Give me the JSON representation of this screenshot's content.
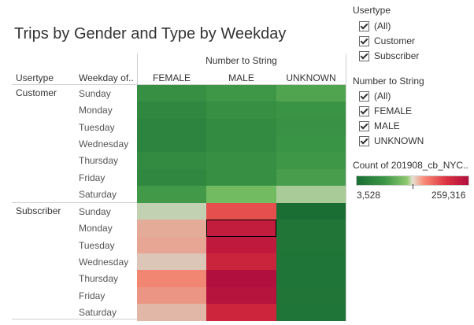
{
  "title": "Trips by Gender and Type by Weekday",
  "header_group": "Number to String",
  "row_headers": [
    "Usertype",
    "Weekday of.."
  ],
  "chart_data": {
    "type": "heatmap",
    "title": "Trips by Gender and Type by Weekday",
    "columns": [
      "FEMALE",
      "MALE",
      "UNKNOWN"
    ],
    "groups": [
      {
        "usertype": "Customer",
        "rows": [
          {
            "weekday": "Sunday",
            "values": [
              9000,
              12000,
              16000
            ]
          },
          {
            "weekday": "Monday",
            "values": [
              7000,
              9000,
              11000
            ]
          },
          {
            "weekday": "Tuesday",
            "values": [
              6000,
              8000,
              10000
            ]
          },
          {
            "weekday": "Wednesday",
            "values": [
              6000,
              8000,
              11000
            ]
          },
          {
            "weekday": "Thursday",
            "values": [
              8000,
              9000,
              12000
            ]
          },
          {
            "weekday": "Friday",
            "values": [
              7000,
              9000,
              14000
            ]
          },
          {
            "weekday": "Saturday",
            "values": [
              13000,
              25000,
              35000
            ]
          }
        ]
      },
      {
        "usertype": "Subscriber",
        "rows": [
          {
            "weekday": "Sunday",
            "values": [
              40000,
              120000,
              3528
            ]
          },
          {
            "weekday": "Monday",
            "values": [
              60000,
              210000,
              3800
            ]
          },
          {
            "weekday": "Tuesday",
            "values": [
              62000,
              220000,
              3800
            ]
          },
          {
            "weekday": "Wednesday",
            "values": [
              50000,
              190000,
              3700
            ]
          },
          {
            "weekday": "Thursday",
            "values": [
              75000,
              259316,
              3700
            ]
          },
          {
            "weekday": "Friday",
            "values": [
              68000,
              245000,
              3800
            ]
          },
          {
            "weekday": "Saturday",
            "values": [
              55000,
              185000,
              3700
            ]
          }
        ]
      }
    ],
    "color_scale": {
      "min": 3528,
      "max": 259316,
      "low_color": "#1a6e34",
      "high_color": "#b10f3d"
    },
    "selected_cell": {
      "group": 1,
      "row": 1,
      "col": 1
    }
  },
  "filters": {
    "usertype": {
      "title": "Usertype",
      "items": [
        "(All)",
        "Customer",
        "Subscriber"
      ]
    },
    "gender": {
      "title": "Number to String",
      "items": [
        "(All)",
        "FEMALE",
        "MALE",
        "UNKNOWN"
      ]
    }
  },
  "legend": {
    "title": "Count of 201908_cb_NYC..",
    "min_label": "3,528",
    "max_label": "259,316"
  }
}
